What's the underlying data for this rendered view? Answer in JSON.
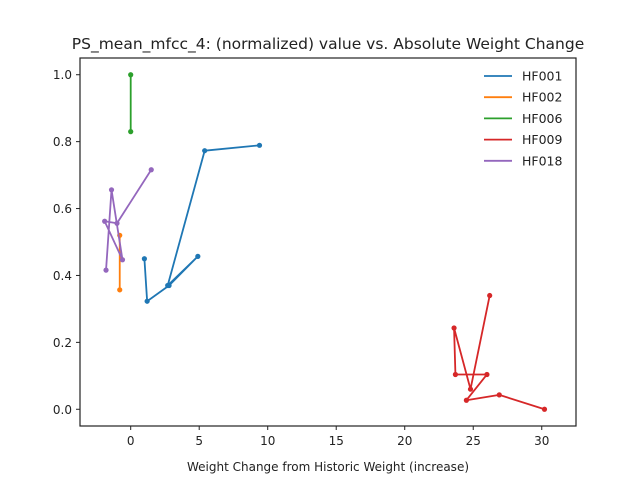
{
  "chart_data": {
    "type": "line",
    "title": "PS_mean_mfcc_4: (normalized) value vs. Absolute Weight Change",
    "xlabel": "Weight Change from Historic Weight (increase)",
    "ylabel": "",
    "xlim": [
      -3.7,
      32.5
    ],
    "ylim": [
      -0.05,
      1.05
    ],
    "xticks": [
      0,
      5,
      10,
      15,
      20,
      25,
      30
    ],
    "xtick_labels": [
      "0",
      "5",
      "10",
      "15",
      "20",
      "25",
      "30"
    ],
    "yticks": [
      0.0,
      0.2,
      0.4,
      0.6,
      0.8,
      1.0
    ],
    "ytick_labels": [
      "0.0",
      "0.2",
      "0.4",
      "0.6",
      "0.8",
      "1.0"
    ],
    "grid": false,
    "legend_position": "top-right",
    "markers": true,
    "series": [
      {
        "name": "HF001",
        "color": "#1f77b4",
        "points": [
          [
            1.0,
            0.45
          ],
          [
            1.2,
            0.323
          ],
          [
            2.8,
            0.37
          ],
          [
            4.9,
            0.457
          ],
          [
            2.7,
            0.37
          ],
          [
            5.4,
            0.773
          ],
          [
            9.4,
            0.789
          ]
        ]
      },
      {
        "name": "HF002",
        "color": "#ff7f0e",
        "points": [
          [
            -0.8,
            0.52
          ],
          [
            -0.8,
            0.357
          ]
        ]
      },
      {
        "name": "HF006",
        "color": "#2ca02c",
        "points": [
          [
            0.0,
            1.0
          ],
          [
            0.0,
            0.83
          ]
        ]
      },
      {
        "name": "HF009",
        "color": "#d62728",
        "points": [
          [
            26.2,
            0.34
          ],
          [
            24.8,
            0.06
          ],
          [
            23.6,
            0.243
          ],
          [
            23.7,
            0.104
          ],
          [
            26.0,
            0.104
          ],
          [
            24.5,
            0.027
          ],
          [
            26.9,
            0.043
          ],
          [
            30.2,
            0.0
          ]
        ]
      },
      {
        "name": "HF018",
        "color": "#9467bd",
        "points": [
          [
            1.5,
            0.716
          ],
          [
            -1.0,
            0.556
          ],
          [
            -1.9,
            0.562
          ],
          [
            -0.6,
            0.447
          ],
          [
            -1.4,
            0.656
          ],
          [
            -1.8,
            0.416
          ]
        ]
      }
    ]
  }
}
